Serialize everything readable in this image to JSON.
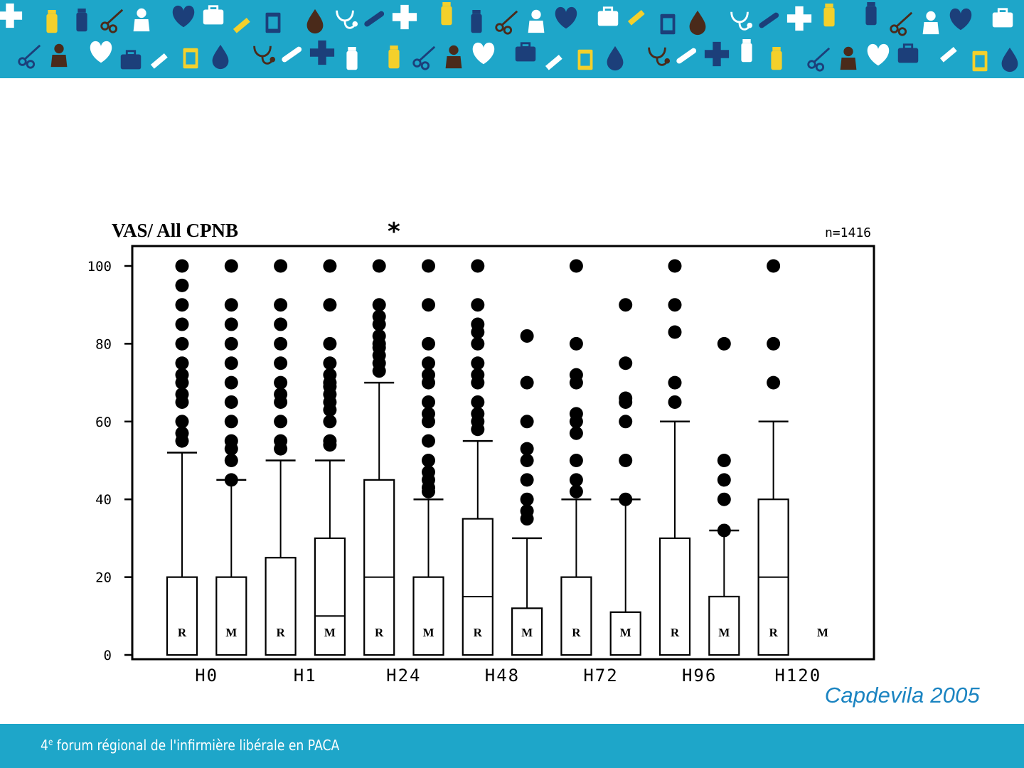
{
  "slide": {
    "citation": "Capdevila 2005",
    "footer": {
      "ordinal": "4",
      "superscript": "e",
      "text": " forum régional de l'infirmière libérale en PACA"
    },
    "banner_icons": [
      "cross-icon",
      "heart-icon",
      "stethoscope-icon",
      "scissors-icon",
      "clipboard-icon",
      "medicine-bottle-icon",
      "first-aid-kit-icon",
      "thermometer-icon",
      "nurse-icon",
      "drop-icon",
      "pill-bottle-icon",
      "syringe-icon"
    ],
    "colors": {
      "banner": "#1ea6c9",
      "citation": "#1b84c1",
      "icon_white": "#ffffff",
      "icon_yellow": "#f4d02b",
      "icon_navy": "#1c3f7a",
      "icon_brown": "#4a2a1a"
    }
  },
  "chart_data": {
    "type": "boxplot",
    "title": "VAS/ All CPNB",
    "annotation": "*",
    "n_label": "n=1416",
    "ylim": [
      0,
      105
    ],
    "yticks": [
      0,
      20,
      40,
      60,
      80,
      100
    ],
    "ytick_labels": [
      "0",
      "20",
      "40",
      "60",
      "80",
      "100"
    ],
    "group_labels": [
      "H0",
      "H1",
      "H24",
      "H48",
      "H72",
      "H96",
      "H120"
    ],
    "boxes": [
      {
        "group": "H0",
        "letter": "R",
        "q1": 0,
        "median": 0,
        "q3": 20,
        "whisker_high": 52,
        "outliers": [
          55,
          57,
          60,
          65,
          67,
          70,
          72,
          75,
          80,
          85,
          90,
          95,
          100
        ]
      },
      {
        "group": "H0",
        "letter": "M",
        "q1": 0,
        "median": 0,
        "q3": 20,
        "whisker_high": 45,
        "outliers": [
          45,
          50,
          53,
          55,
          60,
          65,
          70,
          75,
          80,
          85,
          90,
          100
        ]
      },
      {
        "group": "H1",
        "letter": "R",
        "q1": 0,
        "median": 0,
        "q3": 25,
        "whisker_high": 50,
        "outliers": [
          53,
          55,
          60,
          65,
          67,
          70,
          75,
          80,
          85,
          90,
          100
        ]
      },
      {
        "group": "H1",
        "letter": "M",
        "q1": 0,
        "median": 10,
        "q3": 30,
        "whisker_high": 50,
        "outliers": [
          54,
          55,
          60,
          63,
          65,
          67,
          69,
          70,
          72,
          75,
          80,
          90,
          100
        ]
      },
      {
        "group": "H24",
        "letter": "R",
        "q1": 0,
        "median": 20,
        "q3": 45,
        "whisker_high": 70,
        "outliers": [
          73,
          75,
          77,
          79,
          80,
          82,
          85,
          87,
          90,
          100
        ]
      },
      {
        "group": "H24",
        "letter": "M",
        "q1": 0,
        "median": 0,
        "q3": 20,
        "whisker_high": 40,
        "outliers": [
          42,
          43,
          45,
          47,
          50,
          55,
          60,
          62,
          65,
          70,
          72,
          75,
          80,
          90,
          100
        ]
      },
      {
        "group": "H48",
        "letter": "R",
        "q1": 0,
        "median": 15,
        "q3": 35,
        "whisker_high": 55,
        "outliers": [
          58,
          60,
          62,
          65,
          70,
          72,
          75,
          80,
          83,
          85,
          90,
          100
        ]
      },
      {
        "group": "H48",
        "letter": "M",
        "q1": 0,
        "median": 0,
        "q3": 12,
        "whisker_high": 30,
        "outliers": [
          35,
          37,
          40,
          45,
          50,
          53,
          60,
          70,
          82
        ]
      },
      {
        "group": "H72",
        "letter": "R",
        "q1": 0,
        "median": 0,
        "q3": 20,
        "whisker_high": 40,
        "outliers": [
          42,
          45,
          50,
          57,
          60,
          62,
          70,
          72,
          80,
          100
        ]
      },
      {
        "group": "H72",
        "letter": "M",
        "q1": 0,
        "median": 0,
        "q3": 11,
        "whisker_high": 40,
        "outliers": [
          40,
          50,
          60,
          65,
          66,
          75,
          90
        ]
      },
      {
        "group": "H96",
        "letter": "R",
        "q1": 0,
        "median": 0,
        "q3": 30,
        "whisker_high": 60,
        "outliers": [
          65,
          70,
          83,
          90,
          100
        ]
      },
      {
        "group": "H96",
        "letter": "M",
        "q1": 0,
        "median": 0,
        "q3": 15,
        "whisker_high": 32,
        "outliers": [
          32,
          40,
          45,
          50,
          80
        ]
      },
      {
        "group": "H120",
        "letter": "R",
        "q1": 0,
        "median": 20,
        "q3": 40,
        "whisker_high": 60,
        "outliers": [
          70,
          80,
          100
        ]
      },
      {
        "group": "H120",
        "letter": "M",
        "q1": null,
        "median": null,
        "q3": null,
        "whisker_high": null,
        "outliers": []
      }
    ]
  }
}
